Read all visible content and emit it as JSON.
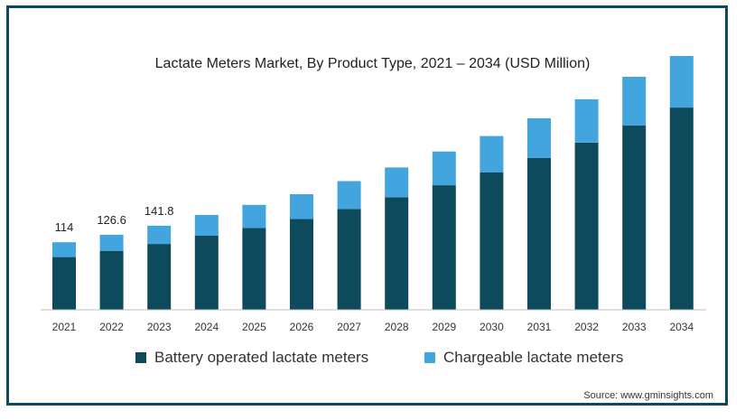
{
  "chart_data": {
    "type": "bar",
    "stacked": true,
    "title": "Lactate Meters Market, By Product Type, 2021 – 2034 (USD Million)",
    "xlabel": "",
    "ylabel": "",
    "categories": [
      "2021",
      "2022",
      "2023",
      "2024",
      "2025",
      "2026",
      "2027",
      "2028",
      "2029",
      "2030",
      "2031",
      "2032",
      "2033",
      "2034"
    ],
    "series": [
      {
        "name": "Battery operated lactate meters",
        "color": "#0d4a5c",
        "values": [
          89,
          99,
          111,
          125,
          138,
          153,
          170,
          190,
          210,
          232,
          256,
          282,
          311,
          341
        ]
      },
      {
        "name": "Chargeable lactate meters",
        "color": "#42a5dd",
        "values": [
          25,
          27.6,
          30.8,
          35,
          39,
          42,
          47,
          50,
          57,
          61,
          67,
          73,
          82,
          87
        ]
      }
    ],
    "data_labels": [
      {
        "category": "2021",
        "text": "114"
      },
      {
        "category": "2022",
        "text": "126.6"
      },
      {
        "category": "2023",
        "text": "141.8"
      }
    ],
    "ylim": [
      0,
      428
    ],
    "grid": false,
    "legend_position": "bottom",
    "source": "Source: www.gminsights.com"
  }
}
